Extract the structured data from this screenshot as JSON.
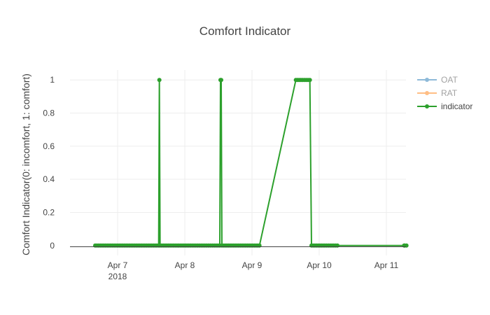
{
  "chart_data": {
    "type": "line",
    "title": "Comfort Indicator",
    "xlabel": "",
    "ylabel": "Comfort Indicator(0: incomfort, 1: comfort)",
    "x_ticks": [
      {
        "value": "2018-04-07",
        "label": "Apr 7",
        "sublabel": "2018"
      },
      {
        "value": "2018-04-08",
        "label": "Apr 8",
        "sublabel": ""
      },
      {
        "value": "2018-04-09",
        "label": "Apr 9",
        "sublabel": ""
      },
      {
        "value": "2018-04-10",
        "label": "Apr 10",
        "sublabel": ""
      },
      {
        "value": "2018-04-11",
        "label": "Apr 11",
        "sublabel": ""
      }
    ],
    "y_ticks": [
      "0",
      "0.2",
      "0.4",
      "0.6",
      "0.8",
      "1"
    ],
    "xlim": [
      "2018-04-06 07:00",
      "2018-04-11 07:00"
    ],
    "ylim": [
      -0.06,
      1.06
    ],
    "grid": true,
    "legend_position": "top-right",
    "series": [
      {
        "name": "OAT",
        "color": "#1f77b4",
        "legend_opacity": 0.5,
        "points": []
      },
      {
        "name": "RAT",
        "color": "#ff7f0e",
        "legend_opacity": 0.5,
        "points": []
      },
      {
        "name": "indicator",
        "color": "#2ca02c",
        "legend_opacity": 1,
        "points": [
          [
            "2018-04-06 16:00",
            0
          ],
          [
            "2018-04-07 00:00",
            0
          ],
          [
            "2018-04-07 08:30",
            0
          ],
          [
            "2018-04-07 14:00",
            0
          ],
          [
            "2018-04-07 14:40",
            0
          ],
          [
            "2018-04-07 14:55",
            1
          ],
          [
            "2018-04-07 15:10",
            0
          ],
          [
            "2018-04-07 20:00",
            0
          ],
          [
            "2018-04-08 02:00",
            0
          ],
          [
            "2018-04-08 06:30",
            0
          ],
          [
            "2018-04-08 08:30",
            0
          ],
          [
            "2018-04-08 12:30",
            0
          ],
          [
            "2018-04-08 12:45",
            1
          ],
          [
            "2018-04-08 13:00",
            1
          ],
          [
            "2018-04-08 13:15",
            0
          ],
          [
            "2018-04-08 18:00",
            0
          ],
          [
            "2018-04-08 23:00",
            0
          ],
          [
            "2018-04-09 02:40",
            0
          ],
          [
            "2018-04-09 15:40",
            1
          ],
          [
            "2018-04-09 18:00",
            1
          ],
          [
            "2018-04-09 20:40",
            1
          ],
          [
            "2018-04-09 21:15",
            0
          ],
          [
            "2018-04-10 02:00",
            0
          ],
          [
            "2018-04-10 06:30",
            0
          ],
          [
            "2018-04-11 06:20",
            0
          ],
          [
            "2018-04-11 06:30",
            0
          ],
          [
            "2018-04-11 07:10",
            0
          ]
        ]
      }
    ]
  }
}
